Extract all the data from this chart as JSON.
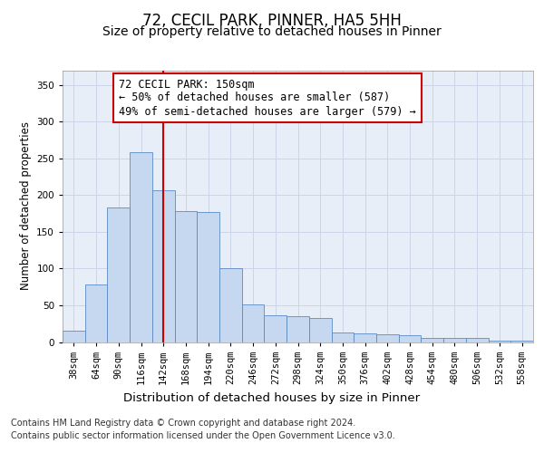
{
  "title": "72, CECIL PARK, PINNER, HA5 5HH",
  "subtitle": "Size of property relative to detached houses in Pinner",
  "xlabel": "Distribution of detached houses by size in Pinner",
  "ylabel": "Number of detached properties",
  "footer_line1": "Contains HM Land Registry data © Crown copyright and database right 2024.",
  "footer_line2": "Contains public sector information licensed under the Open Government Licence v3.0.",
  "annotation_line1": "72 CECIL PARK: 150sqm",
  "annotation_line2": "← 50% of detached houses are smaller (587)",
  "annotation_line3": "49% of semi-detached houses are larger (579) →",
  "bar_values": [
    15,
    78,
    183,
    258,
    207,
    178,
    177,
    101,
    51,
    37,
    35,
    33,
    13,
    12,
    10,
    9,
    5,
    5,
    5,
    2,
    2
  ],
  "bar_labels": [
    "38sqm",
    "64sqm",
    "90sqm",
    "116sqm",
    "142sqm",
    "168sqm",
    "194sqm",
    "220sqm",
    "246sqm",
    "272sqm",
    "298sqm",
    "324sqm",
    "350sqm",
    "376sqm",
    "402sqm",
    "428sqm",
    "454sqm",
    "480sqm",
    "506sqm",
    "532sqm",
    "558sqm"
  ],
  "bar_color": "#c5d8f0",
  "bar_edge_color": "#5b8ac5",
  "grid_color": "#ccd5e8",
  "background_color": "#e8eef8",
  "vline_color": "#cc0000",
  "vline_x_index": 4.5,
  "ylim": [
    0,
    370
  ],
  "yticks": [
    0,
    50,
    100,
    150,
    200,
    250,
    300,
    350
  ],
  "title_fontsize": 12,
  "subtitle_fontsize": 10,
  "xlabel_fontsize": 9.5,
  "ylabel_fontsize": 8.5,
  "tick_fontsize": 7.5,
  "annotation_fontsize": 8.5,
  "footer_fontsize": 7
}
